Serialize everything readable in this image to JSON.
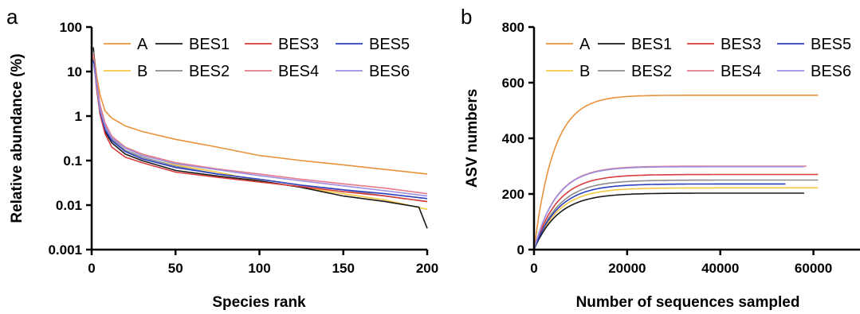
{
  "chart_data": [
    {
      "panel_label": "a",
      "type": "line",
      "xlabel": "Species rank",
      "ylabel": "Relative abundance (%)",
      "y_scale": "log",
      "xlim": [
        0,
        200
      ],
      "ylim": [
        0.001,
        100
      ],
      "x_ticks": [
        "0",
        "50",
        "100",
        "150",
        "200"
      ],
      "y_ticks": [
        "0.001",
        "0.01",
        "0.1",
        "1",
        "10",
        "100"
      ],
      "legend_position": "top",
      "grid": false,
      "series": [
        {
          "name": "A",
          "color": "#e8923a",
          "points": [
            [
              1,
              30
            ],
            [
              3,
              8
            ],
            [
              5,
              3
            ],
            [
              8,
              1.3
            ],
            [
              12,
              0.9
            ],
            [
              20,
              0.6
            ],
            [
              30,
              0.45
            ],
            [
              50,
              0.3
            ],
            [
              75,
              0.2
            ],
            [
              100,
              0.13
            ],
            [
              125,
              0.1
            ],
            [
              150,
              0.08
            ],
            [
              175,
              0.063
            ],
            [
              200,
              0.05
            ]
          ]
        },
        {
          "name": "B",
          "color": "#f5c842",
          "points": [
            [
              1,
              22
            ],
            [
              3,
              5
            ],
            [
              5,
              1.5
            ],
            [
              8,
              0.6
            ],
            [
              12,
              0.35
            ],
            [
              20,
              0.2
            ],
            [
              30,
              0.14
            ],
            [
              50,
              0.08
            ],
            [
              75,
              0.055
            ],
            [
              100,
              0.035
            ],
            [
              125,
              0.025
            ],
            [
              150,
              0.018
            ],
            [
              175,
              0.013
            ],
            [
              200,
              0.008
            ]
          ]
        },
        {
          "name": "BES1",
          "color": "#1a1a1a",
          "points": [
            [
              1,
              35
            ],
            [
              3,
              5
            ],
            [
              5,
              1.2
            ],
            [
              8,
              0.45
            ],
            [
              12,
              0.25
            ],
            [
              20,
              0.14
            ],
            [
              30,
              0.1
            ],
            [
              50,
              0.06
            ],
            [
              75,
              0.045
            ],
            [
              100,
              0.035
            ],
            [
              125,
              0.025
            ],
            [
              150,
              0.016
            ],
            [
              175,
              0.012
            ],
            [
              195,
              0.009
            ],
            [
              200,
              0.003
            ]
          ]
        },
        {
          "name": "BES2",
          "color": "#8c8c8c",
          "points": [
            [
              1,
              28
            ],
            [
              3,
              6
            ],
            [
              5,
              1.5
            ],
            [
              8,
              0.6
            ],
            [
              12,
              0.3
            ],
            [
              20,
              0.17
            ],
            [
              30,
              0.12
            ],
            [
              50,
              0.075
            ],
            [
              75,
              0.05
            ],
            [
              100,
              0.038
            ],
            [
              125,
              0.028
            ],
            [
              150,
              0.022
            ],
            [
              175,
              0.016
            ],
            [
              200,
              0.012
            ]
          ]
        },
        {
          "name": "BES3",
          "color": "#d93b3b",
          "points": [
            [
              1,
              20
            ],
            [
              3,
              4
            ],
            [
              5,
              1.1
            ],
            [
              8,
              0.4
            ],
            [
              12,
              0.2
            ],
            [
              20,
              0.12
            ],
            [
              30,
              0.09
            ],
            [
              50,
              0.055
            ],
            [
              75,
              0.042
            ],
            [
              100,
              0.033
            ],
            [
              125,
              0.026
            ],
            [
              150,
              0.02
            ],
            [
              175,
              0.016
            ],
            [
              200,
              0.012
            ]
          ]
        },
        {
          "name": "BES4",
          "color": "#e57a8a",
          "points": [
            [
              1,
              25
            ],
            [
              3,
              6
            ],
            [
              5,
              1.8
            ],
            [
              8,
              0.7
            ],
            [
              12,
              0.35
            ],
            [
              20,
              0.2
            ],
            [
              30,
              0.14
            ],
            [
              50,
              0.09
            ],
            [
              75,
              0.065
            ],
            [
              100,
              0.05
            ],
            [
              125,
              0.038
            ],
            [
              150,
              0.03
            ],
            [
              175,
              0.024
            ],
            [
              200,
              0.018
            ]
          ]
        },
        {
          "name": "BES5",
          "color": "#2b3fbf",
          "points": [
            [
              1,
              18
            ],
            [
              3,
              5
            ],
            [
              5,
              1.3
            ],
            [
              8,
              0.5
            ],
            [
              12,
              0.28
            ],
            [
              20,
              0.16
            ],
            [
              30,
              0.11
            ],
            [
              50,
              0.07
            ],
            [
              75,
              0.05
            ],
            [
              100,
              0.038
            ],
            [
              125,
              0.028
            ],
            [
              150,
              0.022
            ],
            [
              175,
              0.018
            ],
            [
              200,
              0.014
            ]
          ]
        },
        {
          "name": "BES6",
          "color": "#9b8fe0",
          "points": [
            [
              1,
              15
            ],
            [
              3,
              5
            ],
            [
              5,
              1.4
            ],
            [
              8,
              0.6
            ],
            [
              12,
              0.32
            ],
            [
              20,
              0.19
            ],
            [
              30,
              0.13
            ],
            [
              50,
              0.085
            ],
            [
              75,
              0.062
            ],
            [
              100,
              0.046
            ],
            [
              125,
              0.035
            ],
            [
              150,
              0.027
            ],
            [
              175,
              0.021
            ],
            [
              200,
              0.016
            ]
          ]
        }
      ]
    },
    {
      "panel_label": "b",
      "type": "line",
      "xlabel": "Number of sequences sampled",
      "ylabel": "ASV numbers",
      "xlim": [
        0,
        70000
      ],
      "ylim": [
        0,
        800
      ],
      "x_ticks": [
        "0",
        "20000",
        "40000",
        "60000"
      ],
      "y_ticks": [
        "0",
        "200",
        "400",
        "600",
        "800"
      ],
      "legend_position": "top",
      "grid": false,
      "series": [
        {
          "name": "A",
          "color": "#e8923a",
          "asymptote": 555,
          "rate": 4200,
          "x_end": 61000
        },
        {
          "name": "B",
          "color": "#f5c842",
          "asymptote": 222,
          "rate": 5200,
          "x_end": 61000
        },
        {
          "name": "BES1",
          "color": "#1a1a1a",
          "asymptote": 203,
          "rate": 5200,
          "x_end": 58000
        },
        {
          "name": "BES2",
          "color": "#8c8c8c",
          "asymptote": 250,
          "rate": 5200,
          "x_end": 61000
        },
        {
          "name": "BES3",
          "color": "#d93b3b",
          "asymptote": 270,
          "rate": 5000,
          "x_end": 61000
        },
        {
          "name": "BES4",
          "color": "#e57a8a",
          "asymptote": 300,
          "rate": 4800,
          "x_end": 58500
        },
        {
          "name": "BES5",
          "color": "#2b3fbf",
          "asymptote": 236,
          "rate": 5200,
          "x_end": 54000
        },
        {
          "name": "BES6",
          "color": "#9b8fe0",
          "asymptote": 298,
          "rate": 4800,
          "x_end": 58000
        }
      ]
    }
  ]
}
